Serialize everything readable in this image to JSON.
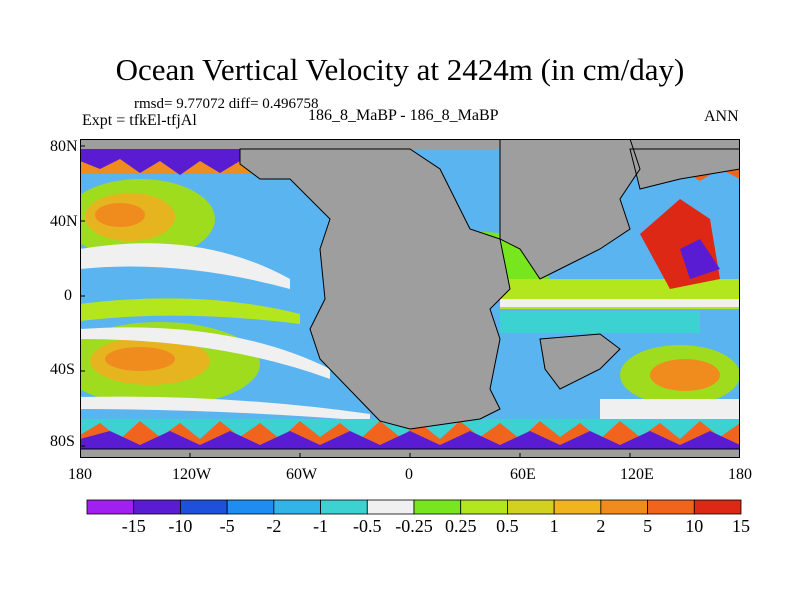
{
  "title": "Ocean Vertical Velocity at 2424m (in cm/day)",
  "stats": "rmsd= 9.77072  diff= 0.496758",
  "left_label": "Expt = tfkEl-tfjAl",
  "center_label": "186_8_MaBP - 186_8_MaBP",
  "right_label": "ANN",
  "lat_ticks": [
    "80N",
    "40N",
    "0",
    "40S",
    "80S"
  ],
  "lon_ticks": [
    "180",
    "120W",
    "60W",
    "0",
    "60E",
    "120E",
    "180"
  ],
  "colorbar": {
    "colors": [
      "#a020f0",
      "#5a1cd2",
      "#1e50dc",
      "#1e8cf0",
      "#32b4e6",
      "#3cd2d2",
      "#f0f0f0",
      "#78e61e",
      "#b4e61e",
      "#d2d21e",
      "#f0b41e",
      "#f08c1e",
      "#f0641e",
      "#dc2814"
    ],
    "labels": [
      "-15",
      "-10",
      "-5",
      "-2",
      "-1",
      "-0.5",
      "-0.25",
      "0.25",
      "0.5",
      "1",
      "2",
      "5",
      "10",
      "15"
    ]
  },
  "colors": {
    "land": "#9e9e9e",
    "coast": "#000000"
  }
}
